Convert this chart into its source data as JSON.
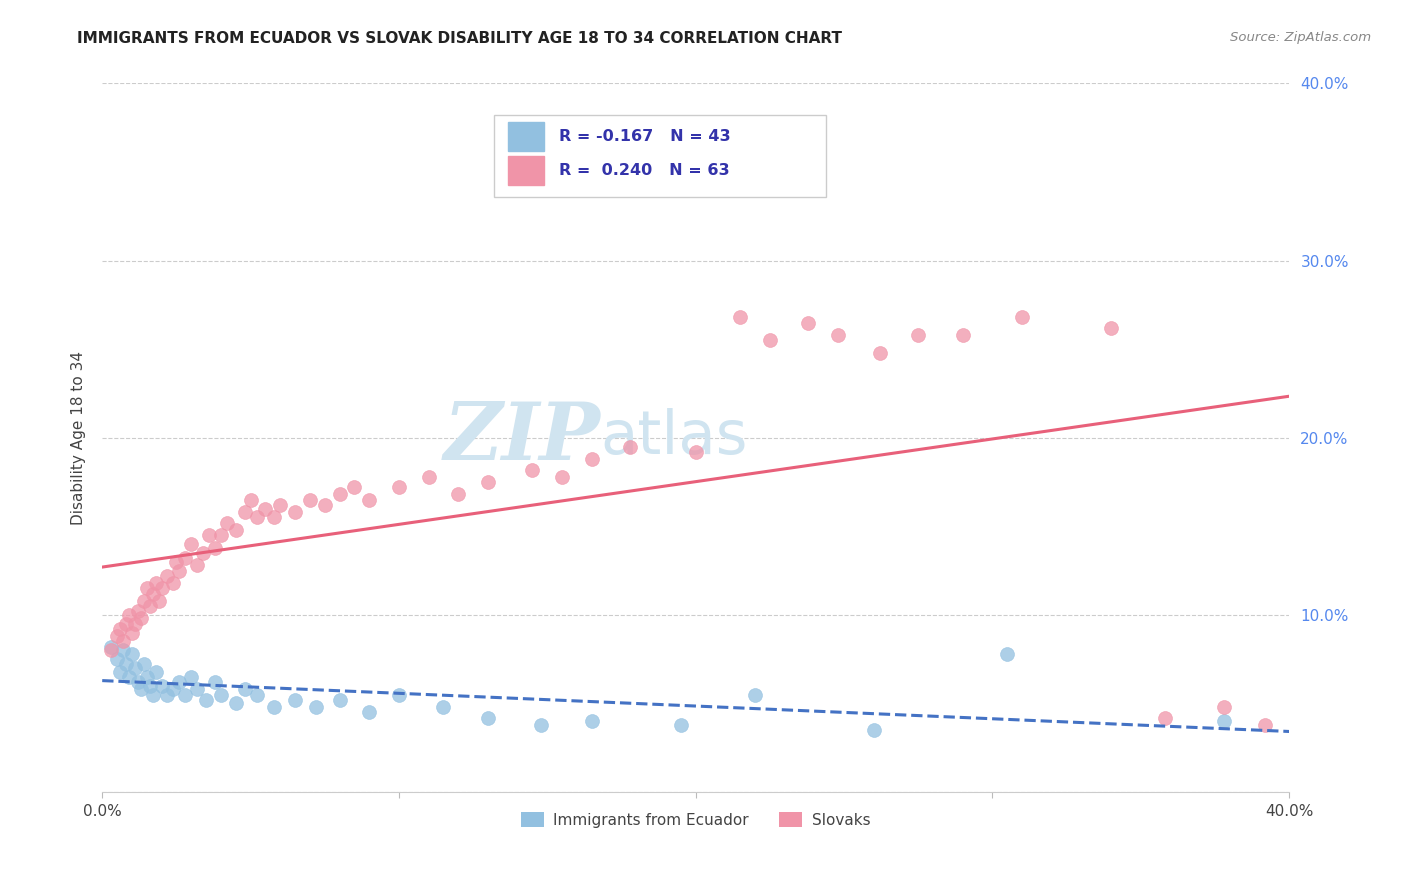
{
  "title": "IMMIGRANTS FROM ECUADOR VS SLOVAK DISABILITY AGE 18 TO 34 CORRELATION CHART",
  "source": "Source: ZipAtlas.com",
  "ylabel": "Disability Age 18 to 34",
  "xmin": 0.0,
  "xmax": 0.4,
  "ymin": 0.0,
  "ymax": 0.4,
  "yticks": [
    0.0,
    0.1,
    0.2,
    0.3,
    0.4
  ],
  "xticks": [
    0.0,
    0.1,
    0.2,
    0.3,
    0.4
  ],
  "xtick_labels": [
    "0.0%",
    "",
    "",
    "",
    "40.0%"
  ],
  "ytick_labels_right": [
    "",
    "10.0%",
    "20.0%",
    "30.0%",
    "40.0%"
  ],
  "legend_label1": "Immigrants from Ecuador",
  "legend_label2": "Slovaks",
  "ecuador_color": "#92c0e0",
  "slovak_color": "#f094a8",
  "trendline_ecuador_color": "#4472c4",
  "trendline_slovak_color": "#e8607a",
  "watermark_zip": "ZIP",
  "watermark_atlas": "atlas",
  "watermark_color": "#d0e4f0",
  "ecuador_R": -0.167,
  "ecuador_N": 43,
  "slovak_R": 0.24,
  "slovak_N": 63,
  "ecuador_points": [
    [
      0.003,
      0.082
    ],
    [
      0.005,
      0.075
    ],
    [
      0.006,
      0.068
    ],
    [
      0.007,
      0.08
    ],
    [
      0.008,
      0.072
    ],
    [
      0.009,
      0.065
    ],
    [
      0.01,
      0.078
    ],
    [
      0.011,
      0.07
    ],
    [
      0.012,
      0.062
    ],
    [
      0.013,
      0.058
    ],
    [
      0.014,
      0.072
    ],
    [
      0.015,
      0.065
    ],
    [
      0.016,
      0.06
    ],
    [
      0.017,
      0.055
    ],
    [
      0.018,
      0.068
    ],
    [
      0.02,
      0.06
    ],
    [
      0.022,
      0.055
    ],
    [
      0.024,
      0.058
    ],
    [
      0.026,
      0.062
    ],
    [
      0.028,
      0.055
    ],
    [
      0.03,
      0.065
    ],
    [
      0.032,
      0.058
    ],
    [
      0.035,
      0.052
    ],
    [
      0.038,
      0.062
    ],
    [
      0.04,
      0.055
    ],
    [
      0.045,
      0.05
    ],
    [
      0.048,
      0.058
    ],
    [
      0.052,
      0.055
    ],
    [
      0.058,
      0.048
    ],
    [
      0.065,
      0.052
    ],
    [
      0.072,
      0.048
    ],
    [
      0.08,
      0.052
    ],
    [
      0.09,
      0.045
    ],
    [
      0.1,
      0.055
    ],
    [
      0.115,
      0.048
    ],
    [
      0.13,
      0.042
    ],
    [
      0.148,
      0.038
    ],
    [
      0.165,
      0.04
    ],
    [
      0.195,
      0.038
    ],
    [
      0.22,
      0.055
    ],
    [
      0.26,
      0.035
    ],
    [
      0.305,
      0.078
    ],
    [
      0.378,
      0.04
    ]
  ],
  "slovak_points": [
    [
      0.003,
      0.08
    ],
    [
      0.005,
      0.088
    ],
    [
      0.006,
      0.092
    ],
    [
      0.007,
      0.085
    ],
    [
      0.008,
      0.095
    ],
    [
      0.009,
      0.1
    ],
    [
      0.01,
      0.09
    ],
    [
      0.011,
      0.095
    ],
    [
      0.012,
      0.102
    ],
    [
      0.013,
      0.098
    ],
    [
      0.014,
      0.108
    ],
    [
      0.015,
      0.115
    ],
    [
      0.016,
      0.105
    ],
    [
      0.017,
      0.112
    ],
    [
      0.018,
      0.118
    ],
    [
      0.019,
      0.108
    ],
    [
      0.02,
      0.115
    ],
    [
      0.022,
      0.122
    ],
    [
      0.024,
      0.118
    ],
    [
      0.025,
      0.13
    ],
    [
      0.026,
      0.125
    ],
    [
      0.028,
      0.132
    ],
    [
      0.03,
      0.14
    ],
    [
      0.032,
      0.128
    ],
    [
      0.034,
      0.135
    ],
    [
      0.036,
      0.145
    ],
    [
      0.038,
      0.138
    ],
    [
      0.04,
      0.145
    ],
    [
      0.042,
      0.152
    ],
    [
      0.045,
      0.148
    ],
    [
      0.048,
      0.158
    ],
    [
      0.05,
      0.165
    ],
    [
      0.052,
      0.155
    ],
    [
      0.055,
      0.16
    ],
    [
      0.058,
      0.155
    ],
    [
      0.06,
      0.162
    ],
    [
      0.065,
      0.158
    ],
    [
      0.07,
      0.165
    ],
    [
      0.075,
      0.162
    ],
    [
      0.08,
      0.168
    ],
    [
      0.085,
      0.172
    ],
    [
      0.09,
      0.165
    ],
    [
      0.1,
      0.172
    ],
    [
      0.11,
      0.178
    ],
    [
      0.12,
      0.168
    ],
    [
      0.13,
      0.175
    ],
    [
      0.145,
      0.182
    ],
    [
      0.155,
      0.178
    ],
    [
      0.165,
      0.188
    ],
    [
      0.178,
      0.195
    ],
    [
      0.2,
      0.192
    ],
    [
      0.215,
      0.268
    ],
    [
      0.225,
      0.255
    ],
    [
      0.238,
      0.265
    ],
    [
      0.248,
      0.258
    ],
    [
      0.262,
      0.248
    ],
    [
      0.275,
      0.258
    ],
    [
      0.29,
      0.258
    ],
    [
      0.31,
      0.268
    ],
    [
      0.34,
      0.262
    ],
    [
      0.358,
      0.042
    ],
    [
      0.378,
      0.048
    ],
    [
      0.392,
      0.038
    ]
  ]
}
